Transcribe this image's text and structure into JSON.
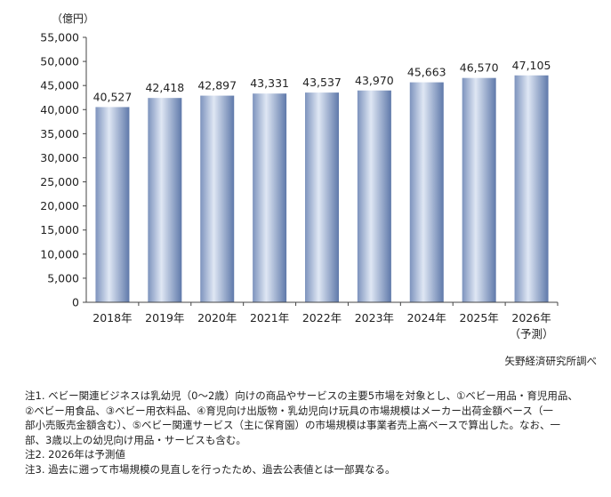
{
  "chart_data": {
    "type": "bar",
    "unit_label": "（億円）",
    "categories": [
      "2018年",
      "2019年",
      "2020年",
      "2021年",
      "2022年",
      "2023年",
      "2024年",
      "2025年",
      "2026年"
    ],
    "category_sublabels": [
      "",
      "",
      "",
      "",
      "",
      "",
      "",
      "",
      "（予測）"
    ],
    "values": [
      40527,
      42418,
      42897,
      43331,
      43537,
      43970,
      45663,
      46570,
      47105
    ],
    "value_labels": [
      "40,527",
      "42,418",
      "42,897",
      "43,331",
      "43,537",
      "43,970",
      "45,663",
      "46,570",
      "47,105"
    ],
    "ylim": [
      0,
      55000
    ],
    "yticks": [
      "0",
      "5,000",
      "10,000",
      "15,000",
      "20,000",
      "25,000",
      "30,000",
      "35,000",
      "40,000",
      "45,000",
      "50,000",
      "55,000"
    ],
    "grid": false,
    "bar_color_light": "#dfe7f4",
    "bar_color_dark": "#6f87b3"
  },
  "source": "矢野経済研究所調べ",
  "notes": {
    "note1_lines": [
      "注1. ベビー関連ビジネスは乳幼児（0〜2歳）向けの商品やサービスの主要5市場を対象とし、①ベビー用品・育児用品、",
      "②ベビー用食品、③ベビー用衣料品、④育児向け出版物・乳幼児向け玩具の市場規模はメーカー出荷金額ベース（一",
      "部小売販売金額含む）、⑤ベビー関連サービス（主に保育園）の市場規模は事業者売上高ベースで算出した。なお、一",
      "部、3歳以上の幼児向け用品・サービスも含む。"
    ],
    "note2": "注2. 2026年は予測値",
    "note3": "注3. 過去に遡って市場規模の見直しを行ったため、過去公表値とは一部異なる。"
  }
}
